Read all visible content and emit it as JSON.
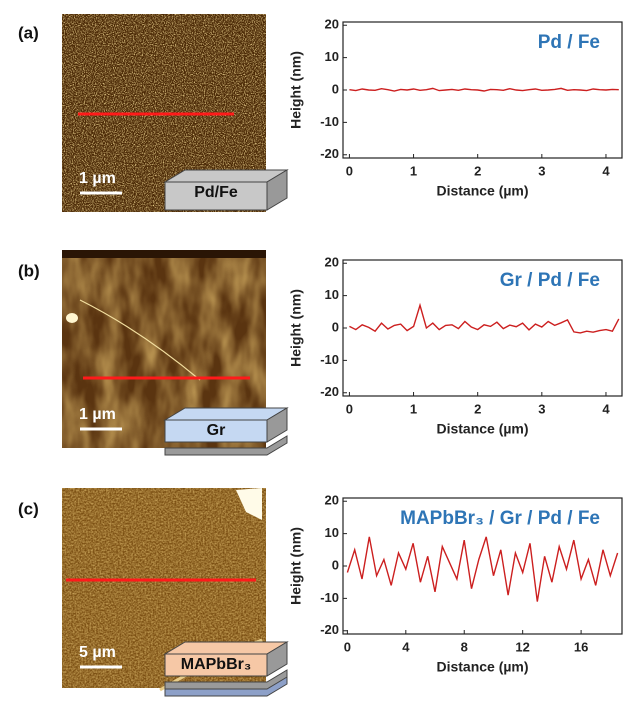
{
  "panels": [
    {
      "label": "(a)",
      "scale_bar": "1 µm",
      "layer": "Pd/Fe"
    },
    {
      "label": "(b)",
      "scale_bar": "1 µm",
      "layer": "Gr"
    },
    {
      "label": "(c)",
      "scale_bar": "5 µm",
      "layer": "MAPbBr₃"
    }
  ],
  "chart_data": [
    {
      "type": "line",
      "annotation": "Pd / Fe",
      "x_label": "Distance (µm)",
      "y_label": "Height (nm)",
      "x": [
        0,
        0.1,
        0.2,
        0.3,
        0.4,
        0.5,
        0.6,
        0.7,
        0.8,
        0.9,
        1,
        1.1,
        1.2,
        1.3,
        1.4,
        1.5,
        1.6,
        1.7,
        1.8,
        1.9,
        2,
        2.1,
        2.2,
        2.3,
        2.4,
        2.5,
        2.6,
        2.7,
        2.8,
        2.9,
        3,
        3.1,
        3.2,
        3.3,
        3.4,
        3.5,
        3.6,
        3.7,
        3.8,
        3.9,
        4,
        4.1,
        4.2
      ],
      "series": [
        {
          "color": "#cc1f1f",
          "values": [
            0.1,
            -0.2,
            0.3,
            0,
            -0.1,
            0.4,
            0.1,
            -0.3,
            0.2,
            0,
            0.3,
            -0.1,
            0.1,
            0.5,
            -0.2,
            0,
            0.2,
            -0.1,
            0.3,
            0.1,
            0,
            -0.3,
            0.2,
            0.1,
            -0.1,
            0.4,
            0,
            -0.2,
            0.1,
            0.3,
            -0.1,
            0,
            0.2,
            0.5,
            -0.1,
            0.1,
            0,
            -0.2,
            0.3,
            0.1,
            0,
            0.2,
            0.1
          ]
        }
      ],
      "xlim": [
        -0.1,
        4.25
      ],
      "xticks": [
        0,
        1,
        2,
        3,
        4
      ],
      "ylim": [
        -21,
        21
      ],
      "yticks": [
        -20,
        -10,
        0,
        10,
        20
      ],
      "annotation_color": "#2e75b6"
    },
    {
      "type": "line",
      "annotation": "Gr / Pd / Fe",
      "x_label": "Distance (µm)",
      "y_label": "Height (nm)",
      "x": [
        0,
        0.1,
        0.2,
        0.3,
        0.4,
        0.5,
        0.6,
        0.7,
        0.8,
        0.9,
        1,
        1.1,
        1.2,
        1.3,
        1.4,
        1.5,
        1.6,
        1.7,
        1.8,
        1.9,
        2,
        2.1,
        2.2,
        2.3,
        2.4,
        2.5,
        2.6,
        2.7,
        2.8,
        2.9,
        3,
        3.1,
        3.2,
        3.3,
        3.4,
        3.5,
        3.6,
        3.7,
        3.8,
        3.9,
        4,
        4.1,
        4.2
      ],
      "series": [
        {
          "color": "#cc1f1f",
          "values": [
            0.5,
            -0.5,
            1,
            0.2,
            -1,
            1.5,
            -0.3,
            0.8,
            1.2,
            -0.8,
            0.5,
            7,
            0,
            1.5,
            -0.5,
            0.8,
            1,
            -0.2,
            2,
            0.3,
            -0.5,
            1,
            0.5,
            1.8,
            -0.2,
            0.9,
            0.4,
            1.5,
            -0.6,
            1.2,
            0.3,
            2,
            0.8,
            1.6,
            2.5,
            -1.2,
            -1.5,
            -1,
            -1.3,
            -0.8,
            -0.5,
            -1,
            2.8
          ]
        }
      ],
      "xlim": [
        -0.1,
        4.25
      ],
      "xticks": [
        0,
        1,
        2,
        3,
        4
      ],
      "ylim": [
        -21,
        21
      ],
      "yticks": [
        -20,
        -10,
        0,
        10,
        20
      ],
      "annotation_color": "#2e75b6"
    },
    {
      "type": "line",
      "annotation": "MAPbBr₃ / Gr / Pd / Fe",
      "x_label": "Distance (µm)",
      "y_label": "Height (nm)",
      "x": [
        0,
        0.5,
        1,
        1.5,
        2,
        2.5,
        3,
        3.5,
        4,
        4.5,
        5,
        5.5,
        6,
        6.5,
        7,
        7.5,
        8,
        8.5,
        9,
        9.5,
        10,
        10.5,
        11,
        11.5,
        12,
        12.5,
        13,
        13.5,
        14,
        14.5,
        15,
        15.5,
        16,
        16.5,
        17,
        17.5,
        18,
        18.5
      ],
      "series": [
        {
          "color": "#cc1f1f",
          "values": [
            -2,
            5,
            -4,
            9,
            -3,
            2,
            -6,
            4,
            -1,
            7,
            -5,
            3,
            -8,
            6,
            1,
            -4,
            8,
            -7,
            2,
            9,
            -3,
            5,
            -9,
            4,
            -2,
            7,
            -11,
            3,
            -5,
            6,
            -1,
            8,
            -4,
            2,
            -6,
            5,
            -3,
            4
          ]
        }
      ],
      "xlim": [
        -0.3,
        18.8
      ],
      "xticks": [
        0,
        4,
        8,
        12,
        16
      ],
      "ylim": [
        -21,
        21
      ],
      "yticks": [
        -20,
        -10,
        0,
        10,
        20
      ],
      "annotation_color": "#2e75b6"
    }
  ]
}
